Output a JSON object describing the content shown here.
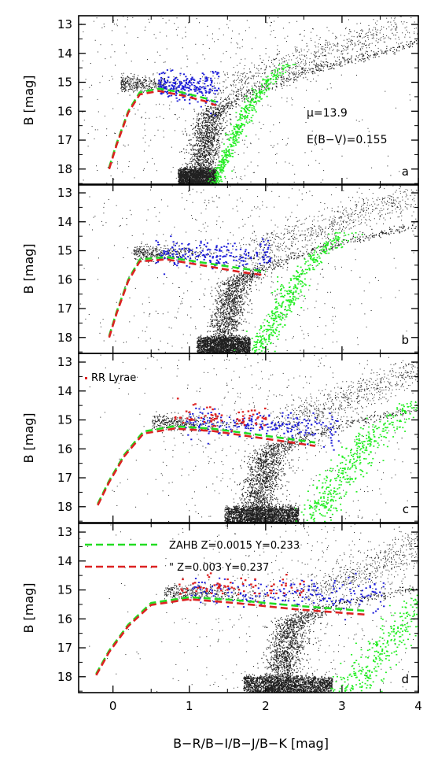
{
  "colors": {
    "field_stars": "#202020",
    "horizontal_branch": "#1a1ad8",
    "rgb_offset": "#22ee22",
    "rr_lyrae": "#dd2020",
    "zahb_z0015": "#22dd22",
    "zahb_z003": "#dd2222"
  },
  "chart_data": {
    "type": "scatter",
    "x_axis": {
      "label": "B−R/B−I/B−J/B−K   [mag]",
      "range": [
        -0.45,
        4.0
      ],
      "ticks": [
        "0",
        "1",
        "2",
        "3",
        "4"
      ],
      "tick_values": [
        0,
        1,
        2,
        3,
        4
      ]
    },
    "y_axis": {
      "label": "B   [mag]",
      "range": [
        12.7,
        18.55
      ],
      "inverted": true,
      "ticks": [
        "13",
        "14",
        "15",
        "16",
        "17",
        "18"
      ],
      "tick_values": [
        13,
        14,
        15,
        16,
        17,
        18
      ]
    },
    "panels": [
      {
        "tag": "a",
        "color_index": "B−R",
        "annotations": [
          "μ=13.9",
          "E(B−V)=0.155"
        ],
        "series": [
          {
            "role": "field_stars",
            "color": "#202020"
          },
          {
            "role": "horizontal_branch",
            "color": "#1a1ad8",
            "x": [
              0.58,
              1.38
            ],
            "y": [
              14.4,
              16.0
            ]
          },
          {
            "role": "rgb_offset",
            "color": "#22ee22"
          }
        ],
        "zahb": [
          {
            "color": "#22dd22",
            "x": [
              -0.05,
              0.05,
              0.2,
              0.35,
              0.6,
              0.9,
              1.2,
              1.35
            ],
            "y": [
              17.95,
              17.1,
              16.0,
              15.35,
              15.22,
              15.35,
              15.55,
              15.68
            ]
          },
          {
            "color": "#dd2222",
            "x": [
              -0.05,
              0.05,
              0.2,
              0.35,
              0.6,
              0.9,
              1.2,
              1.35
            ],
            "y": [
              18.0,
              17.15,
              16.05,
              15.42,
              15.3,
              15.45,
              15.65,
              15.8
            ]
          }
        ]
      },
      {
        "tag": "b",
        "color_index": "B−I",
        "annotations": [],
        "series": [
          {
            "role": "field_stars",
            "color": "#202020"
          },
          {
            "role": "horizontal_branch",
            "color": "#1a1ad8",
            "x": [
              0.55,
              2.05
            ],
            "y": [
              14.45,
              16.0
            ]
          },
          {
            "role": "rgb_offset",
            "color": "#22ee22"
          }
        ],
        "zahb": [
          {
            "color": "#22dd22",
            "x": [
              -0.05,
              0.05,
              0.2,
              0.35,
              0.7,
              1.2,
              1.7,
              2.0
            ],
            "y": [
              17.95,
              17.1,
              16.0,
              15.3,
              15.22,
              15.42,
              15.62,
              15.72
            ]
          },
          {
            "color": "#dd2222",
            "x": [
              -0.05,
              0.05,
              0.2,
              0.35,
              0.7,
              1.2,
              1.7,
              2.0
            ],
            "y": [
              18.0,
              17.15,
              16.05,
              15.37,
              15.3,
              15.52,
              15.75,
              15.85
            ]
          }
        ]
      },
      {
        "tag": "c",
        "color_index": "B−J",
        "annotations": [],
        "legend": [
          {
            "label": "RR Lyrae",
            "color": "#dd2020"
          }
        ],
        "series": [
          {
            "role": "field_stars",
            "color": "#202020"
          },
          {
            "role": "horizontal_branch",
            "color": "#1a1ad8",
            "x": [
              0.9,
              2.95
            ],
            "y": [
              14.7,
              15.8
            ]
          },
          {
            "role": "rr_lyrae",
            "color": "#dd2020",
            "x": [
              0.8,
              2.0
            ],
            "y": [
              14.1,
              15.4
            ]
          },
          {
            "role": "rgb_offset",
            "color": "#22ee22"
          }
        ],
        "zahb": [
          {
            "color": "#22dd22",
            "x": [
              -0.2,
              -0.05,
              0.15,
              0.4,
              0.8,
              1.3,
              2.0,
              2.65
            ],
            "y": [
              17.9,
              17.1,
              16.2,
              15.4,
              15.22,
              15.3,
              15.55,
              15.78
            ]
          },
          {
            "color": "#dd2222",
            "x": [
              -0.2,
              -0.05,
              0.15,
              0.4,
              0.8,
              1.3,
              2.0,
              2.65
            ],
            "y": [
              17.95,
              17.15,
              16.25,
              15.47,
              15.3,
              15.38,
              15.65,
              15.9
            ]
          }
        ]
      },
      {
        "tag": "d",
        "color_index": "B−K",
        "annotations": [],
        "legend": [
          {
            "label": "ZAHB  Z=0.0015  Y=0.233",
            "color": "#22dd22"
          },
          {
            "label": "\"   Z=0.003   Y=0.237",
            "color": "#dd2222"
          }
        ],
        "series": [
          {
            "role": "field_stars",
            "color": "#202020"
          },
          {
            "role": "horizontal_branch",
            "color": "#1a1ad8",
            "x": [
              1.0,
              3.55
            ],
            "y": [
              14.8,
              15.8
            ]
          },
          {
            "role": "rr_lyrae",
            "color": "#dd2020",
            "x": [
              0.85,
              2.5
            ],
            "y": [
              14.0,
              15.4
            ]
          },
          {
            "role": "rgb_offset",
            "color": "#22ee22"
          }
        ],
        "zahb": [
          {
            "color": "#22dd22",
            "x": [
              -0.22,
              -0.05,
              0.2,
              0.5,
              1.0,
              1.6,
              2.4,
              3.3
            ],
            "y": [
              17.9,
              17.1,
              16.2,
              15.45,
              15.25,
              15.35,
              15.55,
              15.72
            ]
          },
          {
            "color": "#dd2222",
            "x": [
              -0.22,
              -0.05,
              0.2,
              0.5,
              1.0,
              1.6,
              2.4,
              3.3
            ],
            "y": [
              17.95,
              17.15,
              16.25,
              15.52,
              15.32,
              15.45,
              15.67,
              15.85
            ]
          }
        ]
      }
    ]
  }
}
